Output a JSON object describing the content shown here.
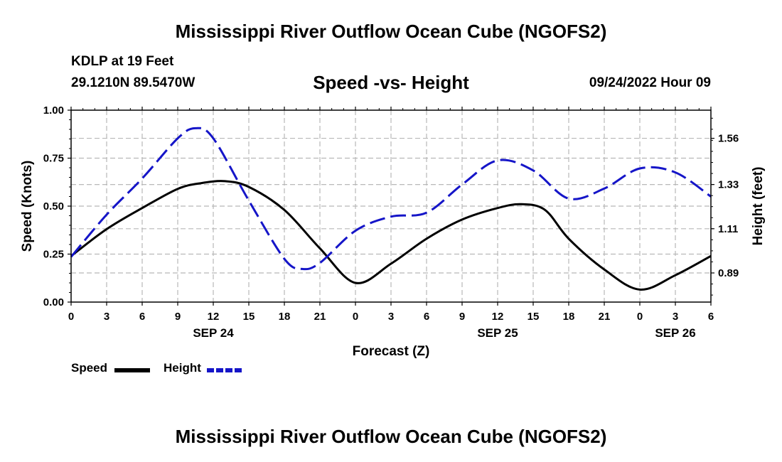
{
  "title": "Mississippi River Outflow Ocean Cube (NGOFS2)",
  "bottom_title": "Mississippi River Outflow Ocean Cube (NGOFS2)",
  "station": "KDLP at 19 Feet",
  "coordinates": "29.1210N  89.5470W",
  "subtitle": "Speed -vs- Height",
  "datetime": "09/24/2022 Hour 09",
  "legend": {
    "speed_label": "Speed",
    "height_label": "Height"
  },
  "colors": {
    "speed": "#000000",
    "height": "#1515c8",
    "grid": "#b8b8b8"
  },
  "chart_data": {
    "type": "line",
    "xlabel": "Forecast (Z)",
    "ylabel": "Speed (Knots)",
    "y2label": "Height (feet)",
    "xlim": [
      0,
      54
    ],
    "ylim": [
      0,
      1
    ],
    "y2lim": [
      0.745,
      1.7
    ],
    "x_ticks": [
      0,
      3,
      6,
      9,
      12,
      15,
      18,
      21,
      24,
      27,
      30,
      33,
      36,
      39,
      42,
      45,
      48,
      51,
      54
    ],
    "x_tick_labels": [
      "0",
      "3",
      "6",
      "9",
      "12",
      "15",
      "18",
      "21",
      "0",
      "3",
      "6",
      "9",
      "12",
      "15",
      "18",
      "21",
      "0",
      "3",
      "6"
    ],
    "y_ticks": [
      0,
      0.25,
      0.5,
      0.75,
      1.0
    ],
    "y_tick_labels": [
      "0.00",
      "0.25",
      "0.50",
      "0.75",
      "1.00"
    ],
    "y2_ticks": [
      0.89,
      1.11,
      1.33,
      1.56
    ],
    "y2_tick_labels": [
      "0.89",
      "1.11",
      "1.33",
      "1.56"
    ],
    "date_labels": [
      {
        "x": 12,
        "label": "SEP 24"
      },
      {
        "x": 36,
        "label": "SEP 25"
      },
      {
        "x": 51,
        "label": "SEP 26"
      }
    ],
    "grid": true,
    "series": [
      {
        "name": "Speed",
        "axis": "left",
        "style": "solid",
        "x": [
          0,
          3,
          6,
          9,
          11,
          13,
          15,
          18,
          21,
          24,
          27,
          30,
          33,
          36,
          38,
          40,
          42,
          45,
          48,
          51,
          54
        ],
        "values": [
          0.24,
          0.38,
          0.49,
          0.59,
          0.62,
          0.63,
          0.6,
          0.48,
          0.28,
          0.1,
          0.2,
          0.33,
          0.43,
          0.49,
          0.51,
          0.48,
          0.33,
          0.17,
          0.065,
          0.14,
          0.24
        ]
      },
      {
        "name": "Height",
        "axis": "right",
        "style": "dashed",
        "x": [
          0,
          3,
          6,
          9,
          10.5,
          12,
          15,
          18,
          19.5,
          21,
          24,
          27,
          30,
          33,
          36,
          39,
          42,
          45,
          48,
          51,
          54
        ],
        "values": [
          0.97,
          1.18,
          1.36,
          1.56,
          1.61,
          1.56,
          1.25,
          0.96,
          0.91,
          0.94,
          1.1,
          1.17,
          1.19,
          1.33,
          1.45,
          1.4,
          1.26,
          1.31,
          1.41,
          1.39,
          1.27
        ]
      }
    ]
  }
}
